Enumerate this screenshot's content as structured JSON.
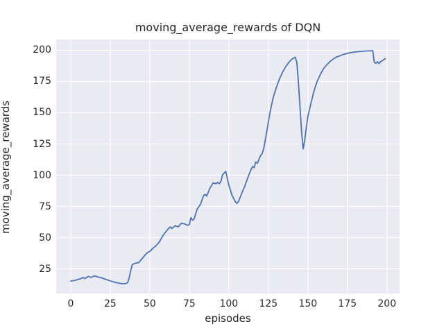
{
  "figure_title": "moving_average_rewards of DQN",
  "chart_data": {
    "type": "line",
    "title": "moving_average_rewards of DQN",
    "xlabel": "episodes",
    "ylabel": "moving_average_rewards",
    "xticks": [
      0,
      25,
      50,
      75,
      100,
      125,
      150,
      175,
      200
    ],
    "yticks": [
      25,
      50,
      75,
      100,
      125,
      150,
      175,
      200
    ],
    "xlim": [
      -9.2,
      208.0
    ],
    "ylim": [
      5.3,
      208.6
    ],
    "grid": true,
    "legend_position": "none",
    "axes_background": "#eaeaf2",
    "grid_color": "#ffffff",
    "text_color": "#262626",
    "x": [
      0,
      2,
      4,
      6,
      8,
      9,
      11,
      13,
      15,
      17,
      19,
      21,
      23,
      25,
      27,
      29,
      31,
      33,
      35,
      36,
      37,
      38,
      39,
      41,
      43,
      45,
      47,
      48,
      50,
      52,
      54,
      56,
      58,
      60,
      62,
      63,
      64,
      66,
      68,
      70,
      72,
      74,
      75,
      76,
      77,
      78,
      80,
      82,
      84,
      85,
      86,
      88,
      90,
      92,
      93,
      94,
      95,
      96,
      98,
      100,
      102,
      104,
      105,
      106,
      108,
      110,
      112,
      114,
      115,
      116,
      117,
      118,
      120,
      121,
      122,
      124,
      126,
      128,
      130,
      132,
      134,
      136,
      138,
      140,
      142,
      143,
      144,
      145,
      146,
      147,
      148,
      149,
      150,
      152,
      154,
      156,
      158,
      160,
      162,
      164,
      166,
      168,
      170,
      172,
      174,
      176,
      178,
      180,
      182,
      184,
      186,
      188,
      190,
      191,
      192,
      193,
      194,
      195,
      196,
      197,
      198,
      199
    ],
    "series": [
      {
        "name": "moving_average_rewards",
        "color": "#4c72b0",
        "values": [
          15.3,
          15.6,
          16.3,
          17.0,
          18.1,
          17.2,
          18.9,
          18.2,
          19.4,
          18.6,
          18.0,
          17.2,
          16.2,
          15.4,
          14.6,
          13.9,
          13.4,
          13.1,
          13.3,
          14.0,
          18.0,
          24.0,
          28.5,
          29.5,
          30.0,
          33.0,
          36.0,
          37.5,
          39.0,
          41.5,
          43.5,
          46.5,
          51.0,
          54.5,
          57.5,
          58.5,
          57.3,
          59.5,
          58.6,
          61.5,
          61.0,
          59.8,
          60.5,
          66.0,
          64.0,
          64.8,
          73.0,
          76.5,
          83.5,
          84.7,
          83.3,
          89.5,
          93.8,
          93.2,
          94.3,
          93.2,
          95.0,
          100.3,
          103.0,
          92.0,
          84.0,
          79.0,
          77.5,
          78.5,
          85.0,
          91.0,
          98.0,
          104.5,
          107.0,
          106.0,
          110.5,
          109.5,
          115.5,
          117.0,
          121.0,
          135.0,
          150.0,
          162.0,
          170.0,
          177.0,
          182.5,
          187.0,
          190.5,
          193.0,
          194.5,
          190.0,
          175.0,
          155.0,
          135.0,
          121.0,
          128.0,
          138.0,
          147.0,
          158.0,
          168.0,
          175.5,
          181.0,
          185.5,
          188.5,
          191.0,
          193.0,
          194.5,
          195.5,
          196.5,
          197.2,
          197.8,
          198.3,
          198.7,
          199.0,
          199.2,
          199.4,
          199.5,
          199.6,
          199.7,
          190.5,
          189.5,
          190.8,
          189.3,
          191.0,
          191.5,
          192.5,
          193.3
        ]
      }
    ]
  }
}
